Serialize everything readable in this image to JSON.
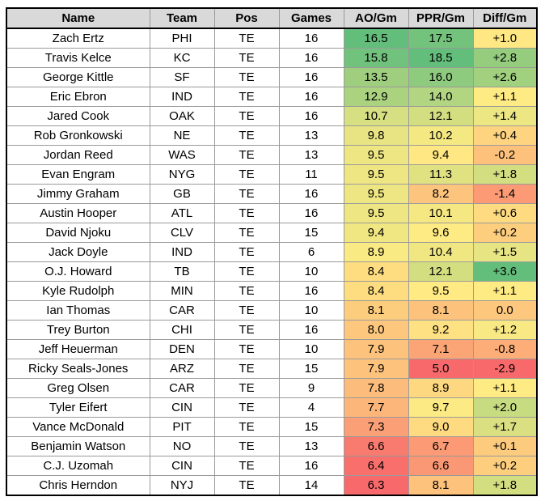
{
  "headers": {
    "name": "Name",
    "team": "Team",
    "pos": "Pos",
    "games": "Games",
    "ao": "AO/Gm",
    "ppr": "PPR/Gm",
    "diff": "Diff/Gm"
  },
  "rows": [
    {
      "name": "Zach Ertz",
      "team": "PHI",
      "pos": "TE",
      "games": "16",
      "ao": "16.5",
      "ppr": "17.5",
      "diff": "+1.0"
    },
    {
      "name": "Travis Kelce",
      "team": "KC",
      "pos": "TE",
      "games": "16",
      "ao": "15.8",
      "ppr": "18.5",
      "diff": "+2.8"
    },
    {
      "name": "George Kittle",
      "team": "SF",
      "pos": "TE",
      "games": "16",
      "ao": "13.5",
      "ppr": "16.0",
      "diff": "+2.6"
    },
    {
      "name": "Eric Ebron",
      "team": "IND",
      "pos": "TE",
      "games": "16",
      "ao": "12.9",
      "ppr": "14.0",
      "diff": "+1.1"
    },
    {
      "name": "Jared Cook",
      "team": "OAK",
      "pos": "TE",
      "games": "16",
      "ao": "10.7",
      "ppr": "12.1",
      "diff": "+1.4"
    },
    {
      "name": "Rob Gronkowski",
      "team": "NE",
      "pos": "TE",
      "games": "13",
      "ao": "9.8",
      "ppr": "10.2",
      "diff": "+0.4"
    },
    {
      "name": "Jordan Reed",
      "team": "WAS",
      "pos": "TE",
      "games": "13",
      "ao": "9.5",
      "ppr": "9.4",
      "diff": "-0.2"
    },
    {
      "name": "Evan Engram",
      "team": "NYG",
      "pos": "TE",
      "games": "11",
      "ao": "9.5",
      "ppr": "11.3",
      "diff": "+1.8"
    },
    {
      "name": "Jimmy Graham",
      "team": "GB",
      "pos": "TE",
      "games": "16",
      "ao": "9.5",
      "ppr": "8.2",
      "diff": "-1.4"
    },
    {
      "name": "Austin Hooper",
      "team": "ATL",
      "pos": "TE",
      "games": "16",
      "ao": "9.5",
      "ppr": "10.1",
      "diff": "+0.6"
    },
    {
      "name": "David Njoku",
      "team": "CLV",
      "pos": "TE",
      "games": "15",
      "ao": "9.4",
      "ppr": "9.6",
      "diff": "+0.2"
    },
    {
      "name": "Jack Doyle",
      "team": "IND",
      "pos": "TE",
      "games": "6",
      "ao": "8.9",
      "ppr": "10.4",
      "diff": "+1.5"
    },
    {
      "name": "O.J. Howard",
      "team": "TB",
      "pos": "TE",
      "games": "10",
      "ao": "8.4",
      "ppr": "12.1",
      "diff": "+3.6"
    },
    {
      "name": "Kyle Rudolph",
      "team": "MIN",
      "pos": "TE",
      "games": "16",
      "ao": "8.4",
      "ppr": "9.5",
      "diff": "+1.1"
    },
    {
      "name": "Ian Thomas",
      "team": "CAR",
      "pos": "TE",
      "games": "10",
      "ao": "8.1",
      "ppr": "8.1",
      "diff": "0.0"
    },
    {
      "name": "Trey Burton",
      "team": "CHI",
      "pos": "TE",
      "games": "16",
      "ao": "8.0",
      "ppr": "9.2",
      "diff": "+1.2"
    },
    {
      "name": "Jeff Heuerman",
      "team": "DEN",
      "pos": "TE",
      "games": "10",
      "ao": "7.9",
      "ppr": "7.1",
      "diff": "-0.8"
    },
    {
      "name": "Ricky Seals-Jones",
      "team": "ARZ",
      "pos": "TE",
      "games": "15",
      "ao": "7.9",
      "ppr": "5.0",
      "diff": "-2.9"
    },
    {
      "name": "Greg Olsen",
      "team": "CAR",
      "pos": "TE",
      "games": "9",
      "ao": "7.8",
      "ppr": "8.9",
      "diff": "+1.1"
    },
    {
      "name": "Tyler Eifert",
      "team": "CIN",
      "pos": "TE",
      "games": "4",
      "ao": "7.7",
      "ppr": "9.7",
      "diff": "+2.0"
    },
    {
      "name": "Vance McDonald",
      "team": "PIT",
      "pos": "TE",
      "games": "15",
      "ao": "7.3",
      "ppr": "9.0",
      "diff": "+1.7"
    },
    {
      "name": "Benjamin Watson",
      "team": "NO",
      "pos": "TE",
      "games": "13",
      "ao": "6.6",
      "ppr": "6.7",
      "diff": "+0.1"
    },
    {
      "name": "C.J. Uzomah",
      "team": "CIN",
      "pos": "TE",
      "games": "16",
      "ao": "6.4",
      "ppr": "6.6",
      "diff": "+0.2"
    },
    {
      "name": "Chris Herndon",
      "team": "NYJ",
      "pos": "TE",
      "games": "14",
      "ao": "6.3",
      "ppr": "8.1",
      "diff": "+1.8"
    }
  ],
  "color_scale": {
    "low": "#f8696b",
    "mid": "#ffeb84",
    "high": "#63be7b",
    "header_bg": "#d9d9d9"
  }
}
